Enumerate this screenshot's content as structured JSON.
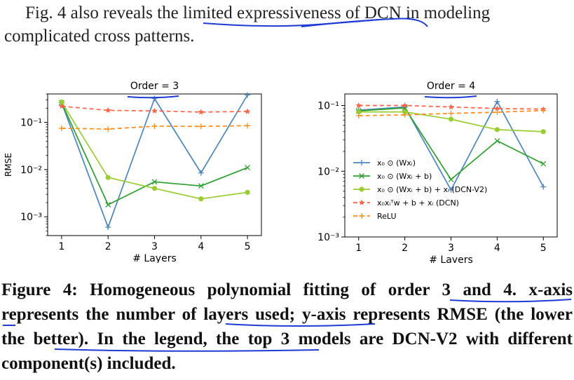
{
  "intro_text": {
    "line1": "Fig. 4 also reveals the limited expressiveness of DCN in modeling",
    "line2": "complicated cross patterns."
  },
  "caption": {
    "label": "Figure 4:",
    "text": " Homogeneous polynomial fitting of order 3 and 4. x-axis represents the number of layers used; y-axis represents RMSE (the lower the better). In the legend, the top 3 models are DCN-V2 with different component(s) included."
  },
  "colors": {
    "s1": "#4a86c2",
    "s2": "#2ca02c",
    "s3": "#9acd32",
    "s4": "#ff6347",
    "s5": "#ff8c1a",
    "ink": "#1f3bd6"
  },
  "chart_data": [
    {
      "type": "line",
      "title": "Order = 3",
      "xlabel": "# Layers",
      "ylabel": "RMSE",
      "yscale": "log",
      "ylim": [
        0.0004,
        0.4
      ],
      "xlim": [
        0.7,
        5.3
      ],
      "x": [
        1,
        2,
        3,
        4,
        5
      ],
      "xticks": [
        "1",
        "2",
        "3",
        "4",
        "5"
      ],
      "yticks": [
        {
          "v": 0.001,
          "label": "10⁻³"
        },
        {
          "v": 0.01,
          "label": "10⁻²"
        },
        {
          "v": 0.1,
          "label": "10⁻¹"
        }
      ],
      "series": [
        {
          "name": "x₀ ⊙ (Wxᵢ)",
          "color": "#4a86c2",
          "dash": "",
          "marker": "plus",
          "values": [
            0.26,
            0.0006,
            0.32,
            0.0085,
            0.38
          ]
        },
        {
          "name": "x₀ ⊙ (Wxᵢ + b)",
          "color": "#2ca02c",
          "dash": "",
          "marker": "x",
          "values": [
            0.26,
            0.0018,
            0.0055,
            0.0045,
            0.011
          ]
        },
        {
          "name": "x₀ ⊙ (Wxᵢ + b) + xᵢ (DCN-V2)",
          "color": "#9acd32",
          "dash": "",
          "marker": "circle",
          "values": [
            0.27,
            0.0068,
            0.004,
            0.0024,
            0.0033
          ]
        },
        {
          "name": "x₀xᵢᵀw + b + xᵢ (DCN)",
          "color": "#ff6347",
          "dash": "6,4",
          "marker": "star",
          "values": [
            0.22,
            0.18,
            0.175,
            0.165,
            0.17
          ]
        },
        {
          "name": "ReLU",
          "color": "#ff8c1a",
          "dash": "6,4",
          "marker": "plus",
          "values": [
            0.075,
            0.072,
            0.083,
            0.082,
            0.085
          ]
        }
      ]
    },
    {
      "type": "line",
      "title": "Order = 4",
      "xlabel": "# Layers",
      "ylabel": "",
      "yscale": "log",
      "ylim": [
        0.001,
        0.15
      ],
      "xlim": [
        0.7,
        5.3
      ],
      "x": [
        1,
        2,
        3,
        4,
        5
      ],
      "xticks": [
        "1",
        "2",
        "3",
        "4",
        "5"
      ],
      "yticks": [
        {
          "v": 0.001,
          "label": "10⁻³"
        },
        {
          "v": 0.01,
          "label": "10⁻²"
        },
        {
          "v": 0.1,
          "label": "10⁻¹"
        }
      ],
      "series": [
        {
          "name": "x₀ ⊙ (Wxᵢ)",
          "color": "#4a86c2",
          "dash": "",
          "marker": "plus",
          "values": [
            0.085,
            0.095,
            0.0052,
            0.115,
            0.0058
          ]
        },
        {
          "name": "x₀ ⊙ (Wxᵢ + b)",
          "color": "#2ca02c",
          "dash": "",
          "marker": "x",
          "values": [
            0.083,
            0.092,
            0.0075,
            0.029,
            0.013
          ]
        },
        {
          "name": "x₀ ⊙ (Wxᵢ + b) + xᵢ (DCN-V2)",
          "color": "#9acd32",
          "dash": "",
          "marker": "circle",
          "values": [
            0.08,
            0.08,
            0.062,
            0.043,
            0.04
          ]
        },
        {
          "name": "x₀xᵢᵀw + b + xᵢ (DCN)",
          "color": "#ff6347",
          "dash": "6,4",
          "marker": "star",
          "values": [
            0.1,
            0.1,
            0.095,
            0.09,
            0.088
          ]
        },
        {
          "name": "ReLU",
          "color": "#ff8c1a",
          "dash": "6,4",
          "marker": "plus",
          "values": [
            0.07,
            0.072,
            0.076,
            0.079,
            0.084
          ]
        }
      ]
    }
  ]
}
